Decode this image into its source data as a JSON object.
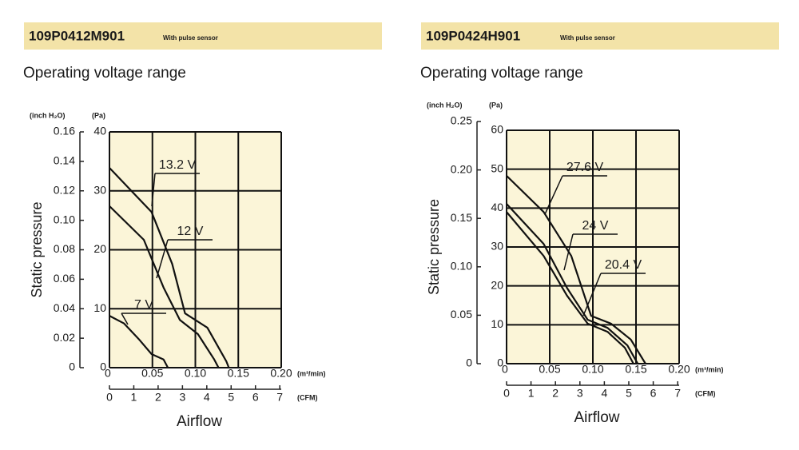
{
  "chart_data": [
    {
      "type": "line",
      "title": "109P0412M901",
      "subtitle": "With pulse sensor",
      "caption": "Operating voltage range",
      "ylabel": "Static pressure",
      "xlabel": "Airflow",
      "yunit": "(inch H₂O)",
      "y2unit": "(Pa)",
      "xunit": "(m³/min)",
      "x2unit": "(CFM)",
      "ylim": [
        0,
        0.16
      ],
      "yticks": [
        0,
        0.02,
        0.04,
        0.06,
        0.08,
        {
          "value": 0.1,
          "label": "0.10"
        },
        0.12,
        0.14,
        0.16
      ],
      "y2lim": [
        0,
        40
      ],
      "y2ticks": [
        0,
        10,
        20,
        30,
        40
      ],
      "xlim": [
        0,
        0.2
      ],
      "xticks": [
        0,
        0.05,
        {
          "value": 0.1,
          "label": "0.10"
        },
        0.15,
        {
          "value": 0.2,
          "label": "0.20"
        }
      ],
      "x2lim": [
        0,
        7.06
      ],
      "x2ticks": [
        0,
        1,
        2,
        3,
        4,
        5,
        6,
        7
      ],
      "grid": true,
      "series": [
        {
          "name": "13.2 V",
          "color": "#111111",
          "axis": "y2",
          "x": [
            0,
            0.049,
            0.073,
            0.088,
            0.114,
            0.136,
            0.139
          ],
          "values": [
            33.9,
            26.4,
            17.6,
            9.2,
            6.8,
            1.1,
            0
          ]
        },
        {
          "name": "12 V",
          "color": "#111111",
          "axis": "y2",
          "x": [
            0,
            0.04,
            0.063,
            0.082,
            0.103,
            0.122,
            0.127
          ],
          "values": [
            27.4,
            21.7,
            13.6,
            8.1,
            5.7,
            1.4,
            0
          ]
        },
        {
          "name": "7 V",
          "color": "#111111",
          "axis": "y2",
          "x": [
            0,
            0.017,
            0.035,
            0.049,
            0.063,
            0.068
          ],
          "values": [
            8.8,
            7.5,
            4.7,
            2.3,
            1.4,
            0
          ]
        }
      ]
    },
    {
      "type": "line",
      "title": "109P0424H901",
      "subtitle": "With pulse sensor",
      "caption": "Operating voltage range",
      "ylabel": "Static pressure",
      "xlabel": "Airflow",
      "yunit": "(inch H₂O)",
      "y2unit": "(Pa)",
      "xunit": "(m³/min)",
      "x2unit": "(CFM)",
      "ylim": [
        0,
        0.25
      ],
      "yticks": [
        0,
        0.05,
        {
          "value": 0.1,
          "label": "0.10"
        },
        0.15,
        {
          "value": 0.2,
          "label": "0.20"
        },
        0.25
      ],
      "y2lim": [
        0,
        60
      ],
      "y2ticks": [
        0,
        10,
        20,
        30,
        40,
        50,
        60
      ],
      "xlim": [
        0,
        0.2
      ],
      "xticks": [
        0,
        0.05,
        {
          "value": 0.1,
          "label": "0.10"
        },
        0.15,
        {
          "value": 0.2,
          "label": "0.20"
        }
      ],
      "x2lim": [
        0,
        7.06
      ],
      "x2ticks": [
        0,
        1,
        2,
        3,
        4,
        5,
        6,
        7
      ],
      "grid": true,
      "series": [
        {
          "name": "27.6 V",
          "color": "#111111",
          "axis": "y2",
          "x": [
            0,
            0.043,
            0.075,
            0.098,
            0.121,
            0.144,
            0.161
          ],
          "values": [
            48.3,
            39,
            27.7,
            12.3,
            10.3,
            6.2,
            0
          ]
        },
        {
          "name": "24 V",
          "color": "#111111",
          "axis": "y2",
          "x": [
            0,
            0.043,
            0.07,
            0.094,
            0.117,
            0.14,
            0.152
          ],
          "values": [
            41.1,
            30.8,
            19.5,
            11.3,
            9.2,
            4.7,
            0
          ]
        },
        {
          "name": "20.4 V",
          "color": "#111111",
          "axis": "y2",
          "x": [
            0,
            0.043,
            0.07,
            0.094,
            0.117,
            0.137,
            0.147
          ],
          "values": [
            39,
            27.7,
            17.5,
            10.3,
            8.2,
            4.1,
            0
          ]
        }
      ]
    }
  ]
}
